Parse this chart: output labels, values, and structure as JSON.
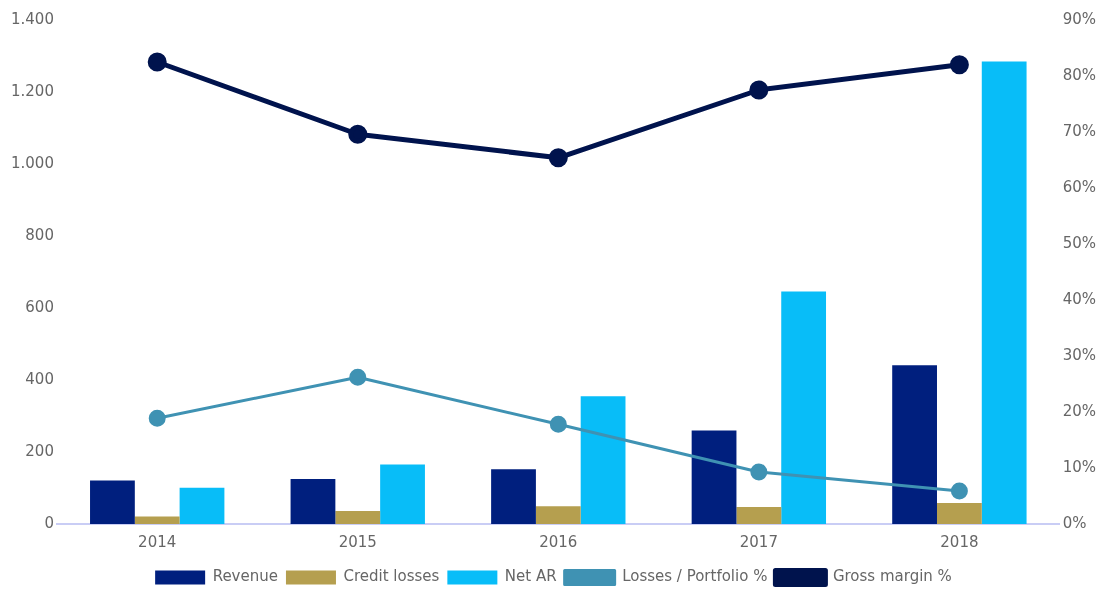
{
  "chart_data": {
    "type": "bar",
    "categories": [
      "2014",
      "2015",
      "2016",
      "2017",
      "2018"
    ],
    "series": [
      {
        "name": "Revenue",
        "color": "#001f7e",
        "values": [
          121,
          125,
          152,
          260,
          441
        ]
      },
      {
        "name": "Credit losses",
        "color": "#b59f4f",
        "values": [
          21,
          36,
          49,
          47,
          58
        ]
      },
      {
        "name": "Net AR",
        "color": "#08bdf8",
        "values": [
          101,
          165,
          355,
          646,
          1285
        ]
      },
      {
        "name": "Losses / Portfolio %",
        "type": "line",
        "axis": "y2",
        "color": "#3f92b3",
        "marker": "circle",
        "values": [
          18.9,
          26.2,
          17.8,
          9.3,
          5.9
        ]
      },
      {
        "name": "Gross margin %",
        "type": "line",
        "axis": "y2",
        "color": "#00134d",
        "marker": "circle",
        "values": [
          82.5,
          69.6,
          65.4,
          77.5,
          82
        ]
      }
    ],
    "ylim": [
      0,
      1400
    ],
    "yticks": [
      0,
      200,
      400,
      600,
      800,
      {
        "value": 1000,
        "label": "1.000"
      },
      {
        "value": 1200,
        "label": "1.200"
      },
      {
        "value": 1400,
        "label": "1.400"
      }
    ],
    "y2lim": [
      0,
      90
    ],
    "y2ticks": [
      {
        "value": 0,
        "label": "0%"
      },
      {
        "value": 10,
        "label": "10%"
      },
      {
        "value": 20,
        "label": "20%"
      },
      {
        "value": 30,
        "label": "30%"
      },
      {
        "value": 40,
        "label": "40%"
      },
      {
        "value": 50,
        "label": "50%"
      },
      {
        "value": 60,
        "label": "60%"
      },
      {
        "value": 70,
        "label": "70%"
      },
      {
        "value": 80,
        "label": "80%"
      },
      {
        "value": 90,
        "label": "90%"
      }
    ],
    "grid": false,
    "legend": "bottom"
  }
}
